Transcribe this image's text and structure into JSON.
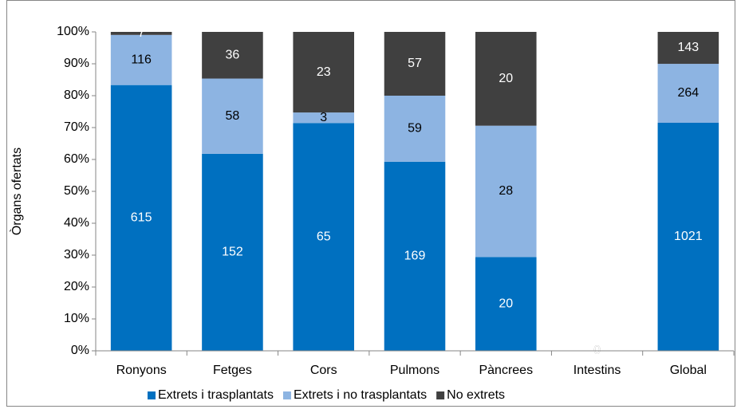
{
  "chart_data": {
    "type": "stacked_bar_percent",
    "y_label": "Òrgans ofertats",
    "categories": [
      "Ronyons",
      "Fetges",
      "Cors",
      "Pulmons",
      "Pàncrees",
      "Intestins",
      "Global"
    ],
    "series": [
      {
        "name": "Extrets i trasplantats",
        "color": "#0070c0",
        "label_color": "#ffffff",
        "values": [
          615,
          152,
          65,
          169,
          20,
          0,
          1021
        ]
      },
      {
        "name": "Extrets i no trasplantats",
        "color": "#8db4e2",
        "label_color": "#000000",
        "values": [
          116,
          58,
          3,
          59,
          28,
          0,
          264
        ]
      },
      {
        "name": "No extrets",
        "color": "#404040",
        "label_color": "#ffffff",
        "values": [
          7,
          36,
          23,
          57,
          20,
          0,
          143
        ]
      }
    ],
    "ylim": [
      0,
      100
    ],
    "yticks": [
      {
        "value": 0,
        "label": "0%"
      },
      {
        "value": 10,
        "label": "10%"
      },
      {
        "value": 20,
        "label": "20%"
      },
      {
        "value": 30,
        "label": "30%"
      },
      {
        "value": 40,
        "label": "40%"
      },
      {
        "value": 50,
        "label": "50%"
      },
      {
        "value": 60,
        "label": "60%"
      },
      {
        "value": 70,
        "label": "70%"
      },
      {
        "value": 80,
        "label": "80%"
      },
      {
        "value": 90,
        "label": "90%"
      },
      {
        "value": 100,
        "label": "100%"
      }
    ],
    "grid": false,
    "legend": "bottom"
  }
}
